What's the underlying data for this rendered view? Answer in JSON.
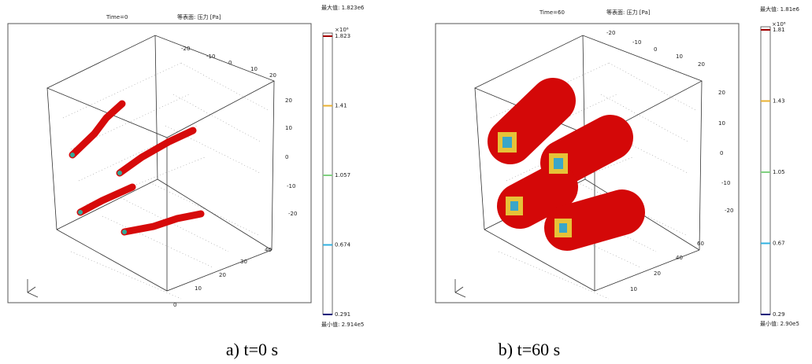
{
  "panels": [
    {
      "time": "Time=0",
      "surface": "等表面: 压力 [Pa]",
      "max_label": "最大值: 1.823e6",
      "multiplier": "×10⁶",
      "colorbar_ticks": [
        "1.823",
        "1.41",
        "1.057",
        "0.674",
        "0.291"
      ],
      "min_label": "最小值: 2.914e5",
      "top_axis_ticks": [
        "-20",
        "-10",
        "0",
        "10",
        "20"
      ],
      "vertical_axis_ticks": [
        "20",
        "10",
        "0",
        "-10",
        "-20"
      ],
      "bottom_axis_ticks": [
        "40",
        "30",
        "20",
        "10",
        "0"
      ],
      "caption": "a)  t=0 s"
    },
    {
      "time": "Time=60",
      "surface": "等表面: 压力 [Pa]",
      "max_label": "最大值: 1.81e6",
      "multiplier": "×10⁶",
      "colorbar_ticks": [
        "1.81",
        "1.43",
        "1.05",
        "0.67",
        "0.29"
      ],
      "min_label": "最小值: 2.90e5",
      "top_axis_ticks": [
        "-20",
        "-10",
        "0",
        "10",
        "20"
      ],
      "vertical_axis_ticks": [
        "20",
        "10",
        "0",
        "-10",
        "-20"
      ],
      "bottom_axis_ticks": [
        "60",
        "40",
        "20",
        "10"
      ],
      "caption": "b)  t=60 s"
    }
  ]
}
